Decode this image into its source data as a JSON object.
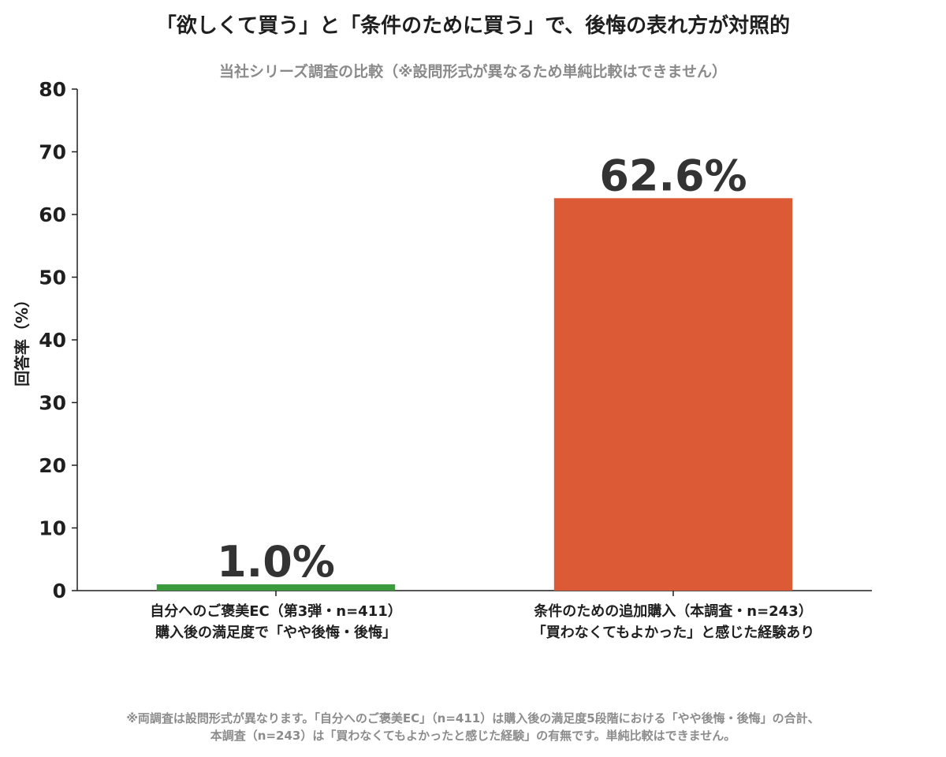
{
  "chart_data": {
    "type": "bar",
    "title": "「欲しくて買う」と「条件のために買う」で、後悔の表れ方が対照的",
    "subtitle": "当社シリーズ調査の比較（※設問形式が異なるため単純比較はできません）",
    "ylabel": "回答率（%）",
    "xlabel": "",
    "ylim": [
      0,
      80
    ],
    "yticks": [
      0,
      10,
      20,
      30,
      40,
      50,
      60,
      70,
      80
    ],
    "grid": false,
    "categories": [
      [
        "自分へのご褒美EC（第3弾・n=411）",
        "購入後の満足度で「やや後悔・後悔」"
      ],
      [
        "条件のための追加購入（本調査・n=243）",
        "「買わなくてもよかった」と感じた経験あり"
      ]
    ],
    "values": [
      1.0,
      62.6
    ],
    "value_labels": [
      "1.0%",
      "62.6%"
    ],
    "colors": [
      "#3a9a3c",
      "#dc5a35"
    ]
  },
  "footnote": {
    "line1": "※両調査は設問形式が異なります。「自分へのご褒美EC」（n=411）は購入後の満足度5段階における「やや後悔・後悔」の合計、",
    "line2": "本調査（n=243）は「買わなくてもよかったと感じた経験」の有無です。単純比較はできません。"
  }
}
